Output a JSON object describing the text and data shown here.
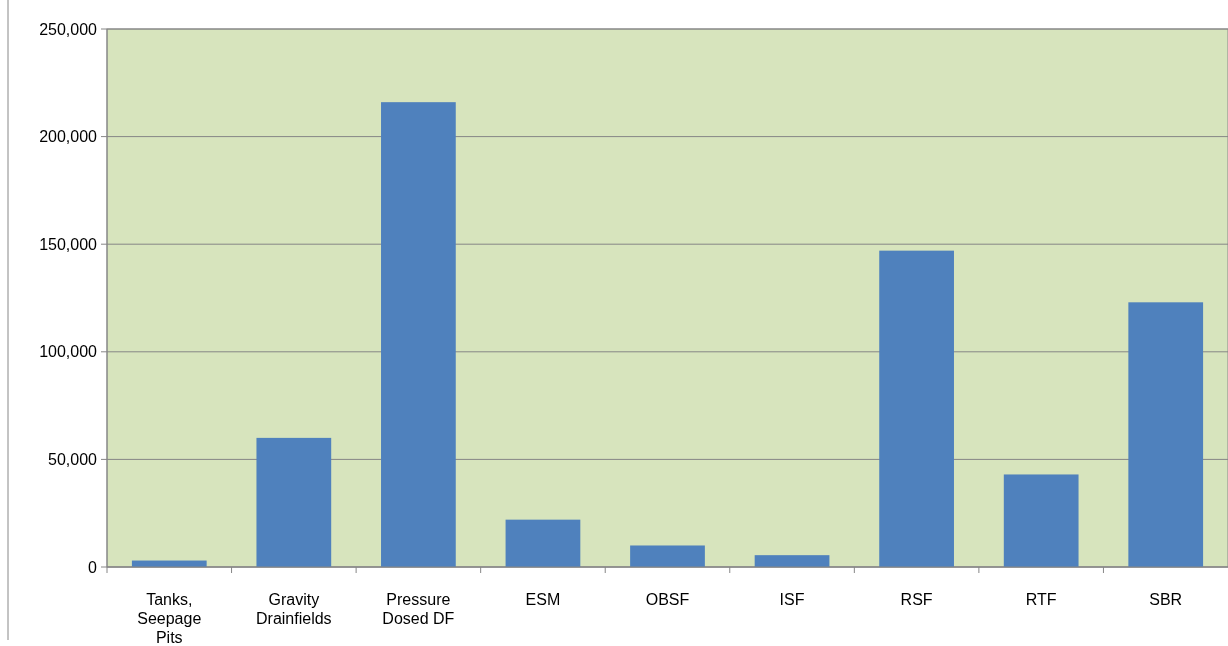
{
  "chart_data": {
    "type": "bar",
    "categories": [
      "Tanks, Seepage Pits",
      "Gravity Drainfields",
      "Pressure Dosed DF",
      "ESM",
      "OBSF",
      "ISF",
      "RSF",
      "RTF",
      "SBR"
    ],
    "values": [
      3000,
      60000,
      216000,
      22000,
      10000,
      5500,
      147000,
      43000,
      123000
    ],
    "color": "#4f81bd",
    "ylim": [
      0,
      250000
    ],
    "yticks": [
      {
        "value": 0,
        "label": "0"
      },
      {
        "value": 50000,
        "label": "50,000"
      },
      {
        "value": 100000,
        "label": "100,000"
      },
      {
        "value": 150000,
        "label": "150,000"
      },
      {
        "value": 200000,
        "label": "200,000"
      },
      {
        "value": 250000,
        "label": "250,000"
      }
    ],
    "grid": "y"
  }
}
